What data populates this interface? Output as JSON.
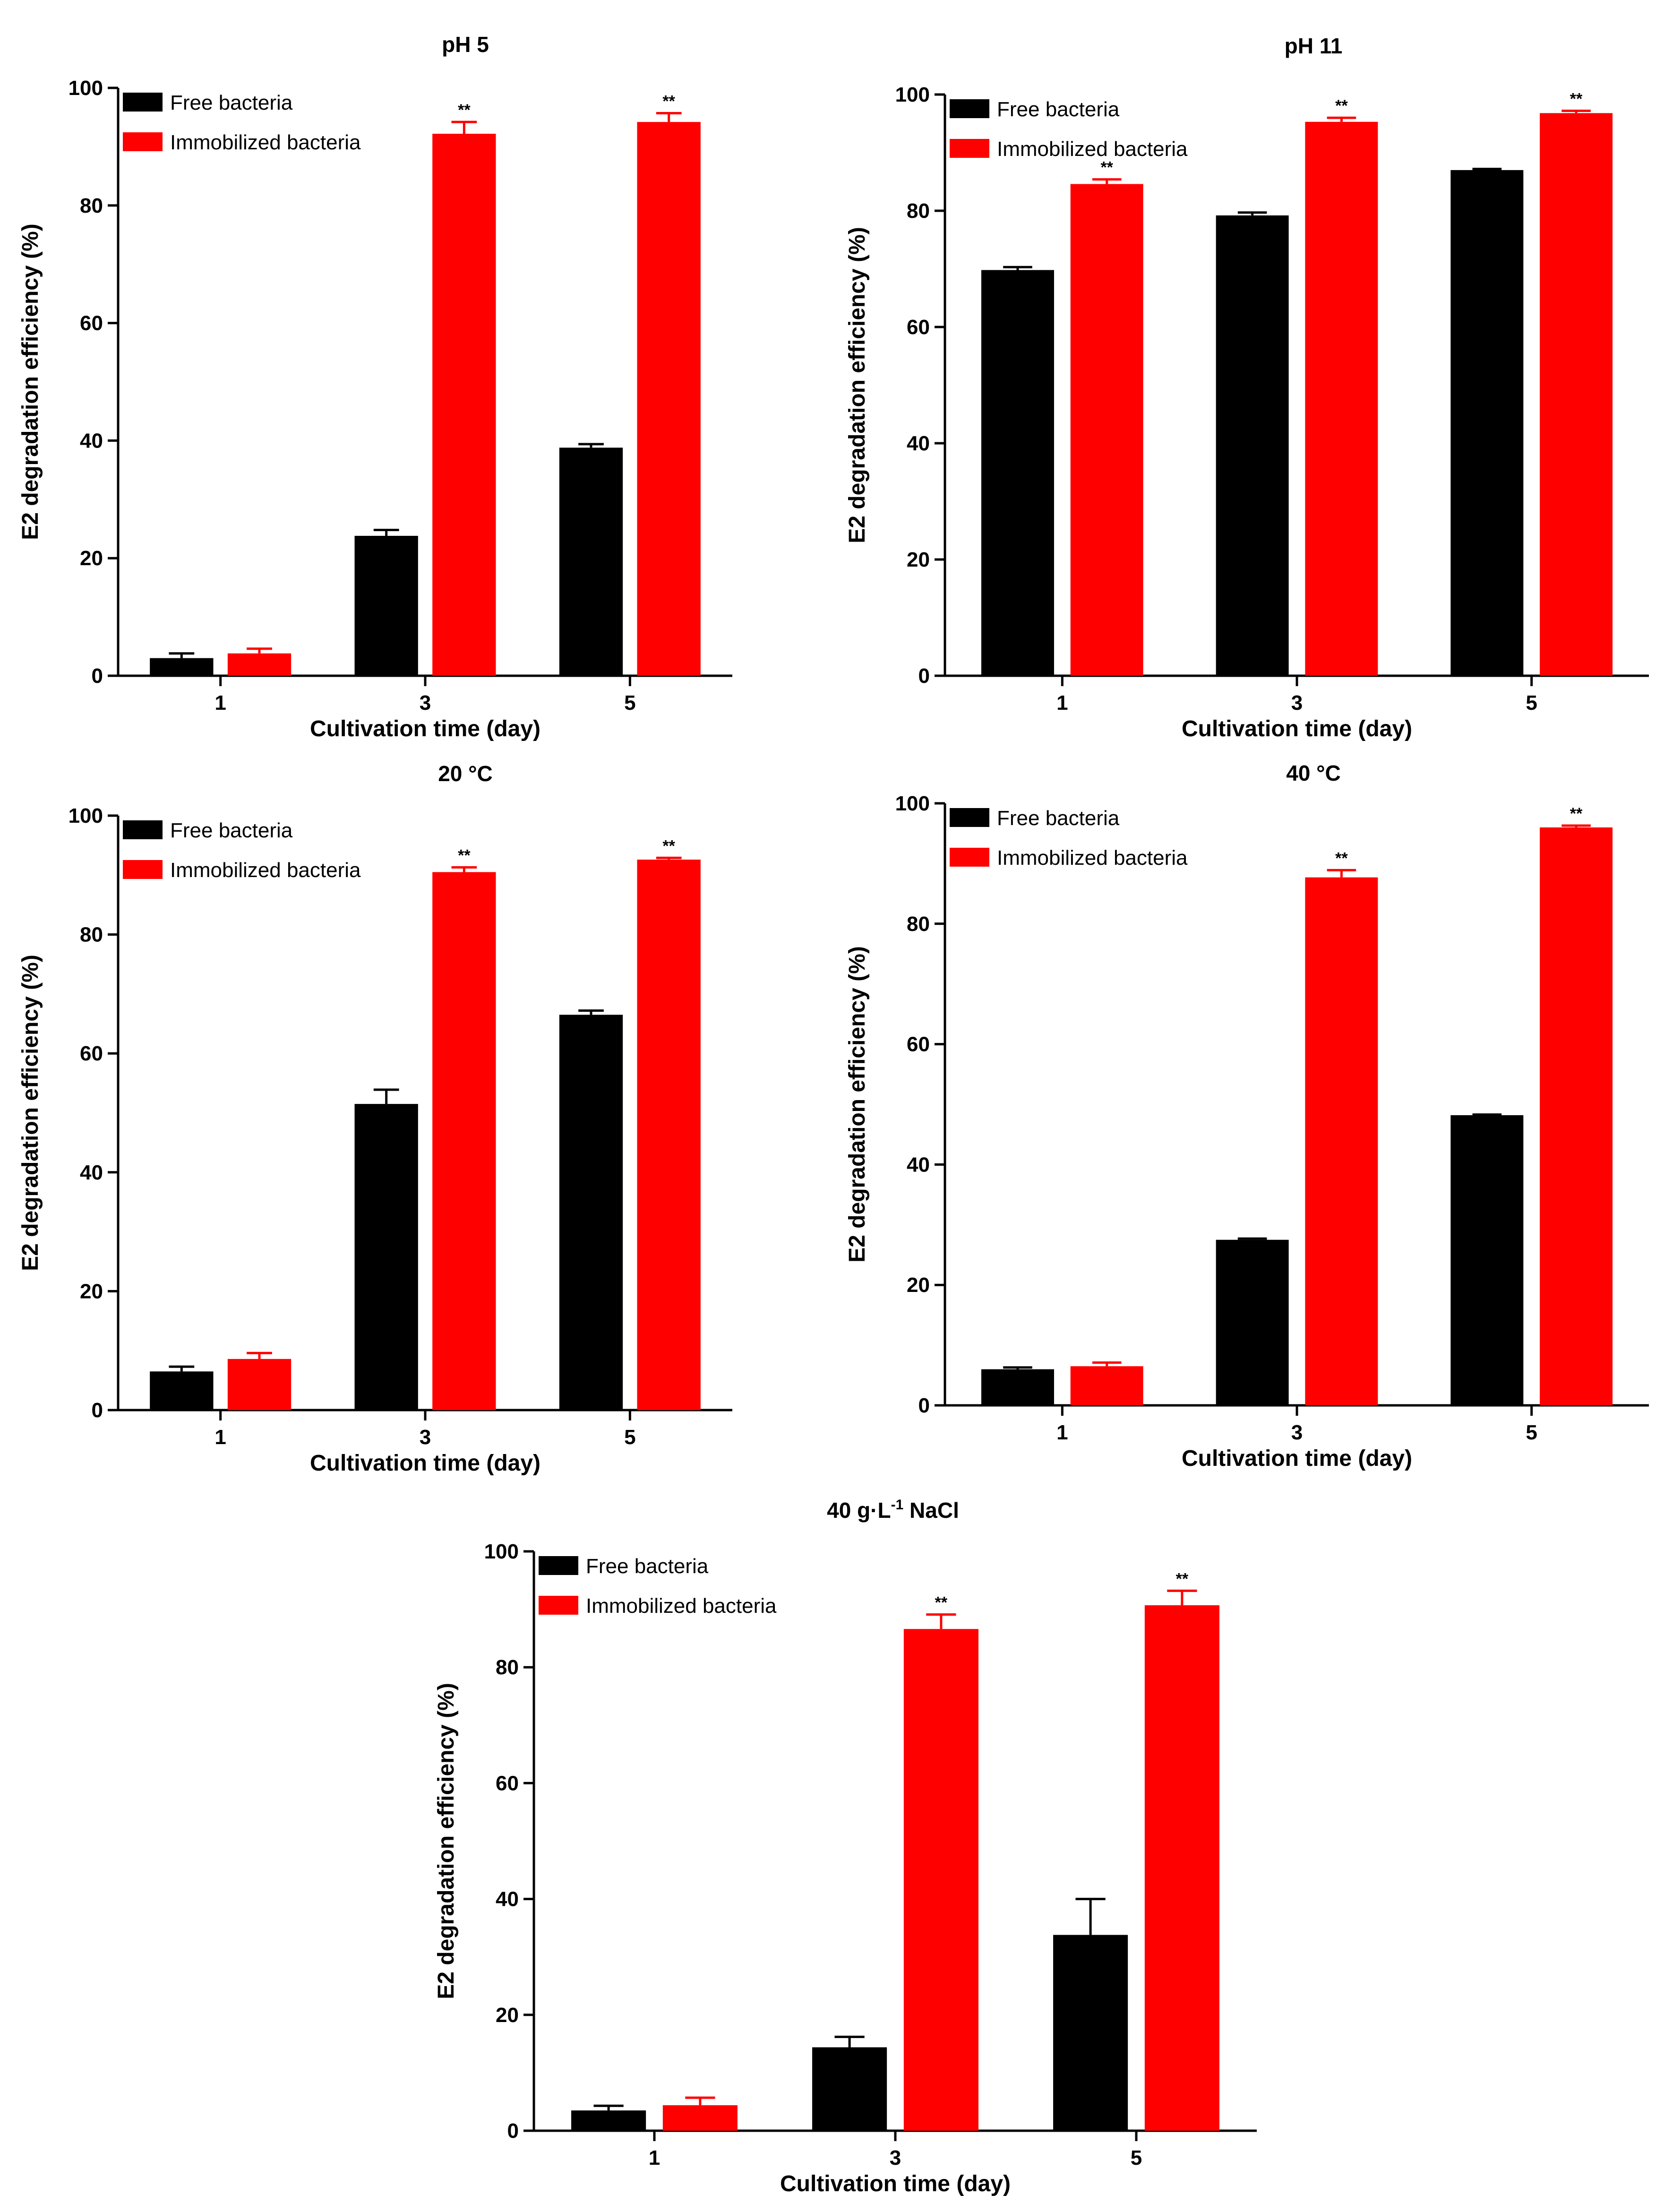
{
  "colors": {
    "free": "#000000",
    "immobilized": "#ff0000",
    "axis": "#000000"
  },
  "chart_data": [
    {
      "type": "bar",
      "title": "pH 5",
      "xlabel": "Cultivation time (day)",
      "ylabel": "E2 degradation efficiency (%)",
      "ylim": [
        0,
        100
      ],
      "yticks": [
        0,
        20,
        40,
        60,
        80,
        100
      ],
      "categories": [
        "1",
        "3",
        "5"
      ],
      "legend": [
        "Free bacteria",
        "Immobilized bacteria"
      ],
      "series": [
        {
          "name": "Free bacteria",
          "values": [
            3.0,
            23.8,
            38.8
          ],
          "errors": [
            0.8,
            1.0,
            0.6
          ],
          "sig": [
            "",
            "",
            ""
          ]
        },
        {
          "name": "Immobilized bacteria",
          "values": [
            3.8,
            92.2,
            94.2
          ],
          "errors": [
            0.8,
            2.0,
            1.5
          ],
          "sig": [
            "",
            "**",
            "**"
          ]
        }
      ]
    },
    {
      "type": "bar",
      "title": "pH 11",
      "xlabel": "Cultivation time (day)",
      "ylabel": "E2 degradation efficiency (%)",
      "ylim": [
        0,
        100
      ],
      "yticks": [
        0,
        20,
        40,
        60,
        80,
        100
      ],
      "categories": [
        "1",
        "3",
        "5"
      ],
      "legend": [
        "Free bacteria",
        "Immobilized bacteria"
      ],
      "series": [
        {
          "name": "Free bacteria",
          "values": [
            69.8,
            79.2,
            87.0
          ],
          "errors": [
            0.5,
            0.5,
            0.2
          ],
          "sig": [
            "",
            "",
            ""
          ]
        },
        {
          "name": "Immobilized bacteria",
          "values": [
            84.6,
            95.3,
            96.8
          ],
          "errors": [
            0.8,
            0.7,
            0.4
          ],
          "sig": [
            "**",
            "**",
            "**"
          ]
        }
      ]
    },
    {
      "type": "bar",
      "title": "20 °C",
      "xlabel": "Cultivation time (day)",
      "ylabel": "E2 degradation efficiency (%)",
      "ylim": [
        0,
        100
      ],
      "yticks": [
        0,
        20,
        40,
        60,
        80,
        100
      ],
      "categories": [
        "1",
        "3",
        "5"
      ],
      "legend": [
        "Free bacteria",
        "Immobilized bacteria"
      ],
      "series": [
        {
          "name": "Free bacteria",
          "values": [
            6.5,
            51.5,
            66.5
          ],
          "errors": [
            0.8,
            2.4,
            0.7
          ],
          "sig": [
            "",
            "",
            ""
          ]
        },
        {
          "name": "Immobilized bacteria",
          "values": [
            8.6,
            90.5,
            92.6
          ],
          "errors": [
            1.0,
            0.8,
            0.3
          ],
          "sig": [
            "",
            "**",
            "**"
          ]
        }
      ]
    },
    {
      "type": "bar",
      "title": "40 °C",
      "xlabel": "Cultivation time (day)",
      "ylabel": "E2 degradation efficiency (%)",
      "ylim": [
        0,
        100
      ],
      "yticks": [
        0,
        20,
        40,
        60,
        80,
        100
      ],
      "categories": [
        "1",
        "3",
        "5"
      ],
      "legend": [
        "Free bacteria",
        "Immobilized bacteria"
      ],
      "series": [
        {
          "name": "Free bacteria",
          "values": [
            6.0,
            27.5,
            48.2
          ],
          "errors": [
            0.3,
            0.2,
            0.1
          ],
          "sig": [
            "",
            "",
            ""
          ]
        },
        {
          "name": "Immobilized bacteria",
          "values": [
            6.5,
            87.7,
            96.0
          ],
          "errors": [
            0.6,
            1.2,
            0.3
          ],
          "sig": [
            "",
            "**",
            "**"
          ]
        }
      ]
    },
    {
      "type": "bar",
      "title": "40 g·L",
      "title_sup": "-1",
      "title_suffix": " NaCl",
      "xlabel": "Cultivation time (day)",
      "ylabel": "E2 degradation efficiency (%)",
      "ylim": [
        0,
        100
      ],
      "yticks": [
        0,
        20,
        40,
        60,
        80,
        100
      ],
      "categories": [
        "1",
        "3",
        "5"
      ],
      "legend": [
        "Free bacteria",
        "Immobilized bacteria"
      ],
      "series": [
        {
          "name": "Free bacteria",
          "values": [
            3.5,
            14.4,
            33.8
          ],
          "errors": [
            0.8,
            1.8,
            6.2
          ],
          "sig": [
            "",
            "",
            ""
          ]
        },
        {
          "name": "Immobilized bacteria",
          "values": [
            4.4,
            86.6,
            90.7
          ],
          "errors": [
            1.3,
            2.5,
            2.5
          ],
          "sig": [
            "",
            "**",
            "**"
          ]
        }
      ]
    }
  ]
}
